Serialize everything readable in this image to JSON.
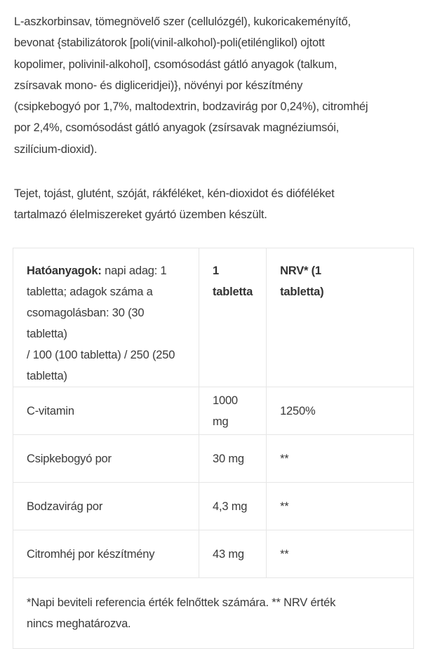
{
  "ingredients_lines": [
    "L-aszkorbinsav, tömegnövelő szer (cellulózgél), kukoricakeményítő,",
    "bevonat {stabilizátorok [poli(vinil-alkohol)-poli(etilénglikol) ojtott",
    "kopolimer, polivinil-alkohol], csomósodást gátló anyagok (talkum,",
    "zsírsavak mono- és digliceridjei)}, növényi por készítmény",
    "(csipkebogyó por 1,7%, maltodextrin, bodzavirág por 0,24%), citromhéj",
    "por 2,4%, csomósodást gátló anyagok (zsírsavak magnéziumsói,",
    "szilícium-dioxid)."
  ],
  "allergen_lines": [
    "Tejet, tojást, glutént, szóját, rákféléket, kén-dioxidot és dióféléket",
    "tartalmazó élelmiszereket gyártó üzemben készült."
  ],
  "table": {
    "header": {
      "col1_bold": "Hatóanyagok:",
      "col1_lines": [
        " napi adag: 1",
        "tabletta; adagok száma a",
        "csomagolásban: 30 (30 tabletta)",
        "/ 100 (100 tabletta) / 250 (250",
        "tabletta)"
      ],
      "col2": "1 tabletta",
      "col3_lines": [
        "NRV* (1",
        "tabletta)"
      ]
    },
    "rows": [
      {
        "name": "C-vitamin",
        "amount": "1000 mg",
        "nrv": "1250%"
      },
      {
        "name": "Csipkebogyó por",
        "amount": "30 mg",
        "nrv": "**"
      },
      {
        "name": "Bodzavirág por",
        "amount": "4,3 mg",
        "nrv": "**"
      },
      {
        "name": "Citromhéj por készítmény",
        "amount": "43 mg",
        "nrv": "**"
      }
    ],
    "footnote_lines": [
      "*Napi beviteli referencia érték felnőttek számára. ** NRV érték",
      "nincs meghatározva."
    ]
  }
}
